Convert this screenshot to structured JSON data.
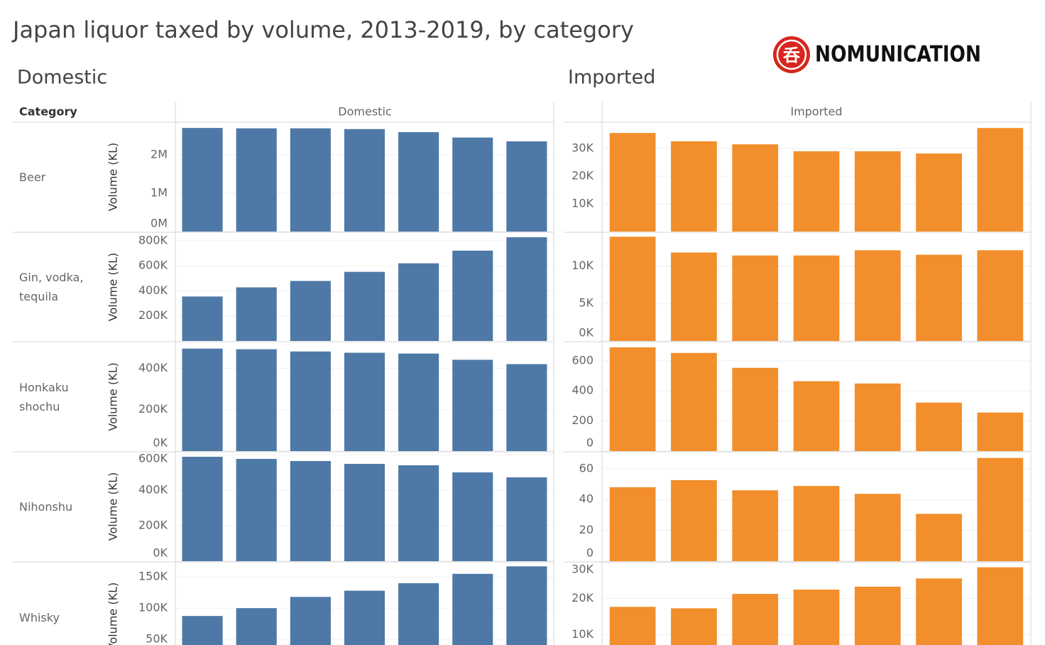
{
  "title": "Japan liquor taxed by volume, 2013-2019, by category",
  "logo": {
    "mark": "呑",
    "text": "NOMUNICATION"
  },
  "category_header": "Category",
  "groups": [
    "Domestic",
    "Imported"
  ],
  "rows": [
    "Beer",
    "Gin, vodka, tequila",
    "Honkaku shochu",
    "Nihonshu",
    "Whisky"
  ],
  "y_label": "Volume (KL)",
  "chart_data": [
    {
      "type": "bar",
      "color": "#4e79a7",
      "grid": true,
      "values": [
        2700000,
        2690000,
        2690000,
        2670000,
        2590000,
        2450000,
        2350000
      ],
      "ylim": [
        0,
        2850000
      ],
      "yticks": [
        {
          "value": 0,
          "label": "0M"
        },
        {
          "value": 1000000,
          "label": "1M"
        },
        {
          "value": 2000000,
          "label": "2M"
        }
      ]
    },
    {
      "type": "bar",
      "color": "#f28e2b",
      "grid": true,
      "values": [
        35600,
        32600,
        31500,
        29000,
        29000,
        28200,
        37400
      ],
      "ylim": [
        0,
        39500
      ],
      "yticks": [
        {
          "value": 10000,
          "label": "10K"
        },
        {
          "value": 20000,
          "label": "20K"
        },
        {
          "value": 30000,
          "label": "30K"
        }
      ]
    },
    {
      "type": "bar",
      "color": "#4e79a7",
      "grid": true,
      "values": [
        355000,
        428000,
        479000,
        552000,
        620000,
        721000,
        828000
      ],
      "ylim": [
        0,
        862000
      ],
      "yticks": [
        {
          "value": 200000,
          "label": "200K"
        },
        {
          "value": 400000,
          "label": "400K"
        },
        {
          "value": 600000,
          "label": "600K"
        },
        {
          "value": 800000,
          "label": "800K"
        }
      ]
    },
    {
      "type": "bar",
      "color": "#f28e2b",
      "grid": true,
      "values": [
        13900,
        11800,
        11400,
        11400,
        12100,
        11500,
        12100
      ],
      "ylim": [
        0,
        14400
      ],
      "yticks": [
        {
          "value": 0,
          "label": "0K"
        },
        {
          "value": 5000,
          "label": "5K"
        },
        {
          "value": 10000,
          "label": "10K"
        }
      ]
    },
    {
      "type": "bar",
      "color": "#4e79a7",
      "grid": true,
      "values": [
        495000,
        492000,
        481000,
        475000,
        471000,
        441000,
        420000
      ],
      "ylim": [
        0,
        525000
      ],
      "yticks": [
        {
          "value": 0,
          "label": "0K"
        },
        {
          "value": 200000,
          "label": "200K"
        },
        {
          "value": 400000,
          "label": "400K"
        }
      ]
    },
    {
      "type": "bar",
      "color": "#f28e2b",
      "grid": true,
      "values": [
        689,
        652,
        553,
        464,
        449,
        322,
        256
      ],
      "ylim": [
        0,
        722
      ],
      "yticks": [
        0,
        200,
        400,
        600
      ]
    },
    {
      "type": "bar",
      "color": "#4e79a7",
      "grid": true,
      "values": [
        588000,
        576000,
        564000,
        548000,
        540000,
        500000,
        472000
      ],
      "ylim": [
        0,
        616000
      ],
      "yticks": [
        {
          "value": 0,
          "label": "0K"
        },
        {
          "value": 200000,
          "label": "200K"
        },
        {
          "value": 400000,
          "label": "400K"
        },
        {
          "value": 600000,
          "label": "600K"
        }
      ]
    },
    {
      "type": "bar",
      "color": "#f28e2b",
      "grid": true,
      "values": [
        48,
        52.6,
        46,
        48.8,
        43.7,
        30.7,
        67
      ],
      "ylim": [
        0,
        71
      ],
      "yticks": [
        0,
        20,
        40,
        60
      ]
    },
    {
      "type": "bar",
      "color": "#4e79a7",
      "grid": true,
      "values": [
        87500,
        100000,
        118000,
        128000,
        140000,
        155000,
        167000
      ],
      "ylim": [
        0,
        173000
      ],
      "yticks": [
        {
          "value": 50000,
          "label": "50K"
        },
        {
          "value": 100000,
          "label": "100K"
        },
        {
          "value": 150000,
          "label": "150K"
        }
      ]
    },
    {
      "type": "bar",
      "color": "#f28e2b",
      "grid": true,
      "values": [
        17700,
        17300,
        21300,
        22500,
        23300,
        25600,
        28700
      ],
      "ylim": [
        0,
        30000
      ],
      "yticks": [
        {
          "value": 10000,
          "label": "10K"
        },
        {
          "value": 20000,
          "label": "20K"
        },
        {
          "value": 30000,
          "label": "30K"
        }
      ]
    }
  ]
}
